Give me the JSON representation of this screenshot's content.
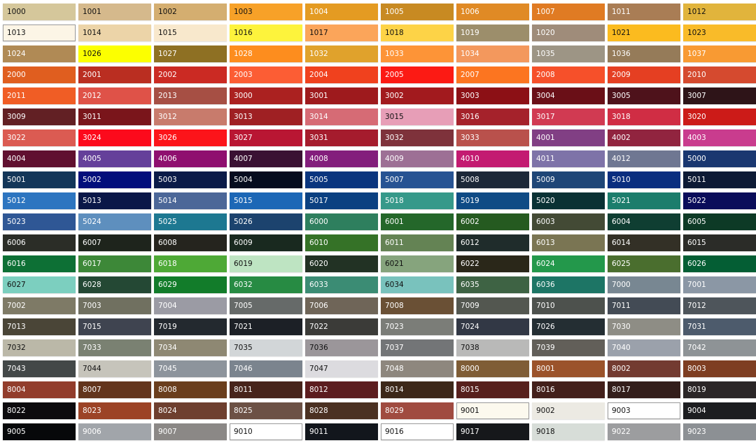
{
  "swatches": [
    [
      [
        "1000",
        "#d5c79b",
        1
      ],
      [
        "1001",
        "#d5b98c",
        1
      ],
      [
        "1002",
        "#d4ae70",
        1
      ],
      [
        "1003",
        "#f7a128",
        1
      ],
      [
        "1004",
        "#e49b22",
        0
      ],
      [
        "1005",
        "#c88a22",
        0
      ],
      [
        "1006",
        "#e08a25",
        0
      ],
      [
        "1007",
        "#e07b23",
        0
      ],
      [
        "1011",
        "#a97d55",
        0
      ],
      [
        "1012",
        "#e1b43c",
        1
      ]
    ],
    [
      [
        "1013",
        "#fcf5e6",
        1,
        1
      ],
      [
        "1014",
        "#ecd4a8",
        1
      ],
      [
        "1015",
        "#f8e8cc",
        1
      ],
      [
        "1016",
        "#fdf33c",
        1
      ],
      [
        "1017",
        "#fba55a",
        1
      ],
      [
        "1018",
        "#fdd347",
        1
      ],
      [
        "1019",
        "#9c8e6b",
        0
      ],
      [
        "1020",
        "#9f8c7a",
        0
      ],
      [
        "1021",
        "#fbbb1f",
        1
      ],
      [
        "1023",
        "#f9bb29",
        1
      ]
    ],
    [
      [
        "1024",
        "#b08a55",
        0
      ],
      [
        "1026",
        "#fcff00",
        1
      ],
      [
        "1027",
        "#8e7023",
        0
      ],
      [
        "1028",
        "#fd8d1e",
        0
      ],
      [
        "1032",
        "#e0a22c",
        0
      ],
      [
        "1033",
        "#fd9437",
        0
      ],
      [
        "1034",
        "#f3985d",
        0
      ],
      [
        "1035",
        "#9d9585",
        0
      ],
      [
        "1036",
        "#957b59",
        0
      ],
      [
        "1037",
        "#f89a33",
        0
      ]
    ],
    [
      [
        "2000",
        "#e05e1f",
        0
      ],
      [
        "2001",
        "#ba2e21",
        0
      ],
      [
        "2002",
        "#cb2a23",
        0
      ],
      [
        "2003",
        "#fc5d34",
        0
      ],
      [
        "2004",
        "#f0411e",
        0
      ],
      [
        "2005",
        "#fc1a14",
        0
      ],
      [
        "2007",
        "#fc7520",
        0
      ],
      [
        "2008",
        "#f6502a",
        0
      ],
      [
        "2009",
        "#e53f22",
        0
      ],
      [
        "2010",
        "#d54a2f",
        0
      ]
    ],
    [
      [
        "2011",
        "#f05d25",
        0
      ],
      [
        "2012",
        "#df5248",
        0
      ],
      [
        "2013",
        "#a64f44",
        0
      ],
      [
        "3000",
        "#ab2120",
        0
      ],
      [
        "3001",
        "#9e1a1d",
        0
      ],
      [
        "3002",
        "#a21a1e",
        0
      ],
      [
        "3003",
        "#8c1015",
        0
      ],
      [
        "3004",
        "#6a0f17",
        0
      ],
      [
        "3005",
        "#4e121b",
        0
      ],
      [
        "3007",
        "#2e1418",
        0
      ]
    ],
    [
      [
        "3009",
        "#622024",
        0
      ],
      [
        "3011",
        "#7a151b",
        0
      ],
      [
        "3012",
        "#c87b6c",
        0
      ],
      [
        "3013",
        "#9f2023",
        0
      ],
      [
        "3014",
        "#d66b75",
        0
      ],
      [
        "3015",
        "#e79eb7",
        1
      ],
      [
        "3016",
        "#a5222b",
        0
      ],
      [
        "3017",
        "#d13a52",
        0
      ],
      [
        "3018",
        "#d02d44",
        0
      ],
      [
        "3020",
        "#cc1b18",
        0
      ]
    ],
    [
      [
        "3022",
        "#db5b52",
        0
      ],
      [
        "3024",
        "#fc0a1c",
        0
      ],
      [
        "3026",
        "#fc141a",
        0
      ],
      [
        "3027",
        "#b91633",
        0
      ],
      [
        "3031",
        "#a51c2d",
        0
      ],
      [
        "3032",
        "#7e323b",
        0
      ],
      [
        "3033",
        "#b9514c",
        0
      ],
      [
        "4001",
        "#813f84",
        0
      ],
      [
        "4002",
        "#91243f",
        0
      ],
      [
        "4003",
        "#c93c8e",
        0
      ]
    ],
    [
      [
        "4004",
        "#601030",
        0
      ],
      [
        "4005",
        "#65409a",
        0
      ],
      [
        "4006",
        "#8f0f6f",
        0
      ],
      [
        "4007",
        "#3a1133",
        0
      ],
      [
        "4008",
        "#831e7c",
        0
      ],
      [
        "4009",
        "#9d7095",
        0
      ],
      [
        "4010",
        "#c31b71",
        0
      ],
      [
        "4011",
        "#7e73a8",
        0
      ],
      [
        "4012",
        "#6f7792",
        0
      ],
      [
        "5000",
        "#1a3770",
        0
      ]
    ],
    [
      [
        "5001",
        "#133659",
        0
      ],
      [
        "5002",
        "#020e7b",
        0
      ],
      [
        "5003",
        "#0b1b48",
        0
      ],
      [
        "5004",
        "#050c1e",
        0
      ],
      [
        "5005",
        "#0a357e",
        0
      ],
      [
        "5007",
        "#275393",
        0
      ],
      [
        "5008",
        "#1c2838",
        0
      ],
      [
        "5009",
        "#1f4677",
        0
      ],
      [
        "5010",
        "#0a2e7f",
        0
      ],
      [
        "5011",
        "#0d1a35",
        0
      ]
    ],
    [
      [
        "5012",
        "#2d75c0",
        0
      ],
      [
        "5013",
        "#0a1748",
        0
      ],
      [
        "5014",
        "#4c6798",
        0
      ],
      [
        "5015",
        "#1c67b6",
        0
      ],
      [
        "5017",
        "#0b4081",
        0
      ],
      [
        "5018",
        "#36998a",
        0
      ],
      [
        "5019",
        "#0f4b85",
        0
      ],
      [
        "5020",
        "#0a3134",
        0
      ],
      [
        "5021",
        "#1c7d6c",
        0
      ],
      [
        "5022",
        "#0a0d5a",
        0
      ]
    ],
    [
      [
        "5023",
        "#2f5795",
        0
      ],
      [
        "5024",
        "#5e8fbe",
        0
      ],
      [
        "5025",
        "#1d7891",
        0
      ],
      [
        "5026",
        "#1c436e",
        0
      ],
      [
        "6000",
        "#2e7f5e",
        0
      ],
      [
        "6001",
        "#24672a",
        0
      ],
      [
        "6002",
        "#255a20",
        0
      ],
      [
        "6003",
        "#434a35",
        0
      ],
      [
        "6004",
        "#0f3e32",
        0
      ],
      [
        "6005",
        "#0d3a26",
        0
      ]
    ],
    [
      [
        "6006",
        "#2b2d27",
        0
      ],
      [
        "6007",
        "#1e241c",
        0
      ],
      [
        "6008",
        "#25241e",
        0
      ],
      [
        "6009",
        "#19291f",
        0
      ],
      [
        "6010",
        "#357227",
        0
      ],
      [
        "6011",
        "#648354",
        0
      ],
      [
        "6012",
        "#1f2c2b",
        0
      ],
      [
        "6013",
        "#7a7553",
        0
      ],
      [
        "6014",
        "#333026",
        0
      ],
      [
        "6015",
        "#2b2c28",
        0
      ]
    ],
    [
      [
        "6016",
        "#0d7035",
        0
      ],
      [
        "6017",
        "#3d8838",
        0
      ],
      [
        "6018",
        "#4ea936",
        0
      ],
      [
        "6019",
        "#bee4c2",
        1
      ],
      [
        "6020",
        "#223224",
        0
      ],
      [
        "6021",
        "#86a47d",
        1
      ],
      [
        "6022",
        "#2a2719",
        0
      ],
      [
        "6024",
        "#23984b",
        0
      ],
      [
        "6025",
        "#4a6e2e",
        0
      ],
      [
        "6026",
        "#045e34",
        0
      ]
    ],
    [
      [
        "6027",
        "#7ccfbf",
        1
      ],
      [
        "6028",
        "#244834",
        0
      ],
      [
        "6029",
        "#127c2a",
        0
      ],
      [
        "6032",
        "#278b43",
        0
      ],
      [
        "6033",
        "#3b8c74",
        0
      ],
      [
        "6034",
        "#79c2bd",
        1
      ],
      [
        "6035",
        "#3e6344",
        0
      ],
      [
        "6036",
        "#1d7565",
        0
      ],
      [
        "7000",
        "#788792",
        0
      ],
      [
        "7001",
        "#8b97a5",
        0
      ]
    ],
    [
      [
        "7002",
        "#7e7a66",
        0
      ],
      [
        "7003",
        "#707060",
        0
      ],
      [
        "7004",
        "#9b9ba4",
        0
      ],
      [
        "7005",
        "#666a69",
        0
      ],
      [
        "7006",
        "#6f6558",
        0
      ],
      [
        "7008",
        "#6a5035",
        0
      ],
      [
        "7009",
        "#535750",
        0
      ],
      [
        "7010",
        "#4d514d",
        0
      ],
      [
        "7011",
        "#434b55",
        0
      ],
      [
        "7012",
        "#4e555b",
        0
      ]
    ],
    [
      [
        "7013",
        "#4a4537",
        0
      ],
      [
        "7015",
        "#3f4450",
        0
      ],
      [
        "7019",
        "#23292f",
        0
      ],
      [
        "7021",
        "#1c2026",
        0
      ],
      [
        "7022",
        "#3b3b38",
        0
      ],
      [
        "7023",
        "#7b7d78",
        0
      ],
      [
        "7024",
        "#323845",
        0
      ],
      [
        "7026",
        "#242e33",
        0
      ],
      [
        "7030",
        "#8e8d85",
        0
      ],
      [
        "7031",
        "#4d5b6c",
        0
      ]
    ],
    [
      [
        "7032",
        "#bbb8a8",
        1
      ],
      [
        "7033",
        "#7a8172",
        0
      ],
      [
        "7034",
        "#8e8873",
        0
      ],
      [
        "7035",
        "#d2d6d8",
        1
      ],
      [
        "7036",
        "#9b969a",
        1
      ],
      [
        "7037",
        "#737577",
        0
      ],
      [
        "7038",
        "#b9b9b8",
        1
      ],
      [
        "7039",
        "#625f59",
        0
      ],
      [
        "7040",
        "#9ba1ab",
        0
      ],
      [
        "7042",
        "#8e9396",
        0
      ]
    ],
    [
      [
        "7043",
        "#434848",
        0
      ],
      [
        "7044",
        "#c6c4bb",
        1
      ],
      [
        "7045",
        "#8d949c",
        0
      ],
      [
        "7046",
        "#7b848e",
        0
      ],
      [
        "7047",
        "#dcdbdf",
        1
      ],
      [
        "7048",
        "#8e877e",
        0
      ],
      [
        "8000",
        "#7f5d36",
        0
      ],
      [
        "8001",
        "#9b532b",
        0
      ],
      [
        "8002",
        "#733b31",
        0
      ],
      [
        "8003",
        "#7e3e22",
        0
      ]
    ],
    [
      [
        "8004",
        "#923d2c",
        0
      ],
      [
        "8007",
        "#63351d",
        0
      ],
      [
        "8008",
        "#6a3e1d",
        0
      ],
      [
        "8011",
        "#47241b",
        0
      ],
      [
        "8012",
        "#5c1d1f",
        0
      ],
      [
        "8014",
        "#3d2819",
        0
      ],
      [
        "8015",
        "#57201c",
        0
      ],
      [
        "8016",
        "#43201b",
        0
      ],
      [
        "8017",
        "#331e1b",
        0
      ],
      [
        "8019",
        "#2b2627",
        0
      ]
    ],
    [
      [
        "8022",
        "#0d0b0e",
        0
      ],
      [
        "8023",
        "#9c4326",
        0
      ],
      [
        "8024",
        "#6e3f2f",
        0
      ],
      [
        "8025",
        "#6c5145",
        0
      ],
      [
        "8028",
        "#4b3122",
        0
      ],
      [
        "8029",
        "#a04b40",
        0
      ],
      [
        "9001",
        "#fcf9ee",
        1,
        1
      ],
      [
        "9002",
        "#eceae3",
        1
      ],
      [
        "9003",
        "#ffffff",
        1,
        1
      ],
      [
        "9004",
        "#1c1d20",
        0
      ]
    ],
    [
      [
        "9005",
        "#07080a",
        0
      ],
      [
        "9006",
        "#a1a5aa",
        0
      ],
      [
        "9007",
        "#8b8886",
        0
      ],
      [
        "9010",
        "#ffffff",
        1,
        1
      ],
      [
        "9011",
        "#12161c",
        0
      ],
      [
        "9016",
        "#ffffff",
        1,
        1
      ],
      [
        "9017",
        "#16181b",
        0
      ],
      [
        "9018",
        "#d7ddd8",
        1
      ],
      [
        "9022",
        "#9c9d9f",
        0
      ],
      [
        "9023",
        "#8c9094",
        0
      ]
    ]
  ]
}
